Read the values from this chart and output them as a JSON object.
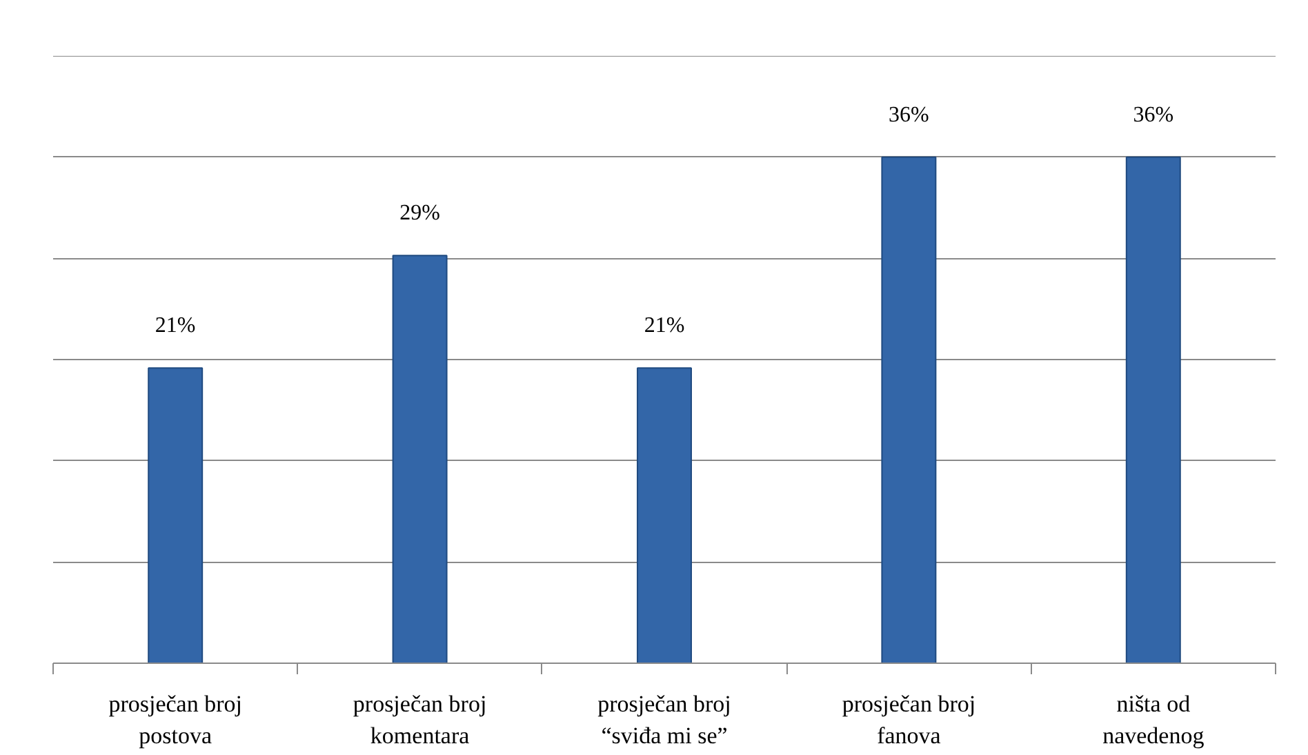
{
  "chart_data": {
    "type": "bar",
    "categories": [
      "prosječan broj postova",
      "prosječan broj komentara",
      "prosječan broj “sviđa mi se”",
      "prosječan broj fanova",
      "ništa od navedenog"
    ],
    "values": [
      21,
      29,
      21,
      36,
      36
    ],
    "color": "#3366a8",
    "data_labels": true,
    "value_labels": [
      "21%",
      "29%",
      "21%",
      "36%",
      "36%"
    ],
    "ylim": [
      0,
      43.2
    ],
    "yticks": [
      {
        "value": 0,
        "label": null
      },
      {
        "value": 7.2,
        "label": null
      },
      {
        "value": 14.4,
        "label": null
      },
      {
        "value": 21.6,
        "label": null
      },
      {
        "value": 28.8,
        "label": null
      },
      {
        "value": 36,
        "label": null
      },
      {
        "value": 43.2,
        "label": null
      }
    ],
    "tick_labels": "x",
    "grid": "y"
  }
}
